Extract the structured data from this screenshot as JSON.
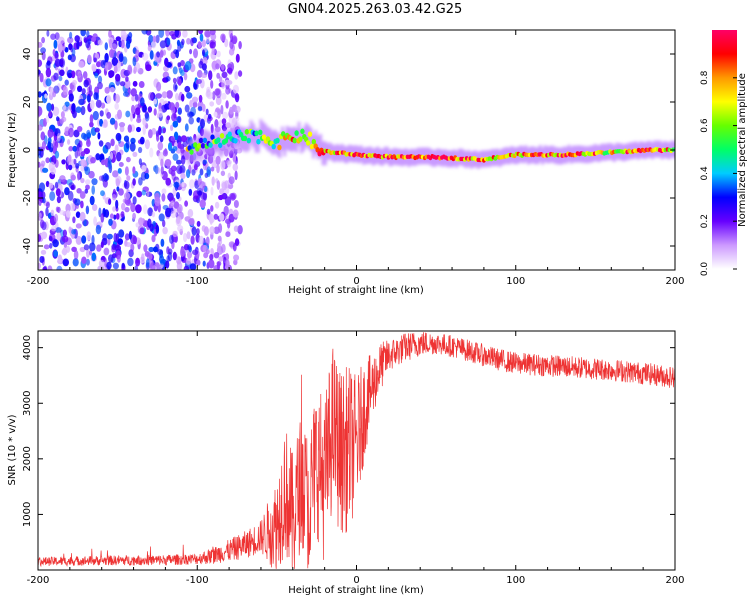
{
  "title": "GN04.2025.263.03.42.G25",
  "chart_data": [
    {
      "type": "heatmap",
      "panel": "top",
      "xlabel": "Height of straight line (km)",
      "ylabel": "Frequency (Hz)",
      "xlim": [
        -200,
        200
      ],
      "ylim": [
        -50,
        50
      ],
      "xticks": [
        -200,
        -100,
        0,
        100,
        200
      ],
      "yticks": [
        -40,
        -20,
        0,
        20,
        40
      ],
      "colorbar": {
        "label": "Normalized spectral amplitude",
        "range": [
          0,
          1
        ],
        "ticks": [
          "0.0",
          "0.2",
          "0.4",
          "0.6",
          "0.8"
        ],
        "colors": [
          "#ffffff",
          "#cc99ff",
          "#6600ff",
          "#0000ff",
          "#00ccff",
          "#00ff66",
          "#66ff00",
          "#ffff00",
          "#ff9900",
          "#ff0000",
          "#ff0066"
        ]
      },
      "description_regions": {
        "noise_x_range": [
          -200,
          -73
        ],
        "signal_track": [
          {
            "x": -105,
            "freq": 1,
            "amp": 0.4
          },
          {
            "x": -90,
            "freq": 3,
            "amp": 0.45
          },
          {
            "x": -75,
            "freq": 5,
            "amp": 0.5
          },
          {
            "x": -60,
            "freq": 6,
            "amp": 0.5
          },
          {
            "x": -50,
            "freq": 3,
            "amp": 0.6
          },
          {
            "x": -40,
            "freq": 6,
            "amp": 0.7
          },
          {
            "x": -30,
            "freq": 5,
            "amp": 0.6
          },
          {
            "x": -25,
            "freq": 0,
            "amp": 0.8
          },
          {
            "x": -15,
            "freq": -1,
            "amp": 0.8
          },
          {
            "x": 0,
            "freq": -2,
            "amp": 0.9
          },
          {
            "x": 25,
            "freq": -3,
            "amp": 0.85
          },
          {
            "x": 50,
            "freq": -3,
            "amp": 0.95
          },
          {
            "x": 80,
            "freq": -4,
            "amp": 0.8
          },
          {
            "x": 100,
            "freq": -2,
            "amp": 0.75
          },
          {
            "x": 130,
            "freq": -2,
            "amp": 0.85
          },
          {
            "x": 160,
            "freq": -1,
            "amp": 0.7
          },
          {
            "x": 185,
            "freq": 0,
            "amp": 0.95
          },
          {
            "x": 200,
            "freq": 0,
            "amp": 0.7
          }
        ]
      }
    },
    {
      "type": "line",
      "panel": "bottom",
      "xlabel": "Height of straight line (km)",
      "ylabel": "SNR (10 * v/v)",
      "xlim": [
        -200,
        200
      ],
      "ylim": [
        0,
        4300
      ],
      "xticks": [
        -200,
        -100,
        0,
        100,
        200
      ],
      "yticks": [
        1000,
        2000,
        3000,
        4000
      ],
      "color": "#ee3333",
      "series": [
        {
          "name": "SNR",
          "x": [
            -200,
            -180,
            -160,
            -140,
            -120,
            -100,
            -90,
            -80,
            -70,
            -60,
            -50,
            -45,
            -40,
            -35,
            -30,
            -25,
            -20,
            -15,
            -10,
            -5,
            0,
            5,
            10,
            15,
            20,
            30,
            40,
            50,
            60,
            70,
            80,
            90,
            100,
            120,
            140,
            160,
            180,
            200
          ],
          "y": [
            150,
            160,
            170,
            175,
            180,
            200,
            260,
            350,
            450,
            600,
            800,
            1500,
            900,
            1600,
            1200,
            2000,
            1600,
            2600,
            2100,
            2200,
            2300,
            2900,
            3300,
            3650,
            3850,
            4000,
            4080,
            4080,
            4030,
            3950,
            3860,
            3780,
            3720,
            3680,
            3640,
            3600,
            3540,
            3460
          ]
        }
      ],
      "noise_amplitude": [
        [
          -200,
          80
        ],
        [
          -100,
          100
        ],
        [
          -60,
          300
        ],
        [
          -45,
          1200
        ],
        [
          -35,
          1200
        ],
        [
          -20,
          1500
        ],
        [
          -5,
          1500
        ],
        [
          10,
          600
        ],
        [
          20,
          300
        ],
        [
          50,
          200
        ],
        [
          100,
          200
        ],
        [
          200,
          200
        ]
      ]
    }
  ]
}
